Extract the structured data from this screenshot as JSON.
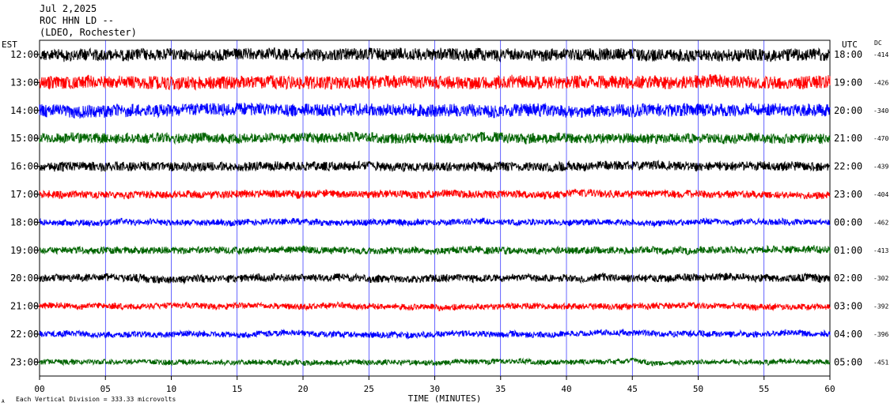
{
  "header": {
    "date": "Jul 2,2025",
    "station": "ROC HHN LD --",
    "network": "(LDEO, Rochester)"
  },
  "labels": {
    "left_tz": "EST",
    "right_tz": "UTC",
    "dc_header": "DC",
    "xlabel": "TIME (MINUTES)",
    "scale_note": "Each Vertical Division =  333.33 microvolts",
    "corner_mark": "A"
  },
  "colors": {
    "black": "#000000",
    "red": "#ff0000",
    "blue": "#0000ff",
    "green": "#006400",
    "grid": "#0000ff"
  },
  "chart_data": {
    "type": "line",
    "title": "",
    "xlabel": "TIME (MINUTES)",
    "ylabel": "",
    "xlim": [
      0,
      60
    ],
    "x_ticks": [
      "00",
      "05",
      "10",
      "15",
      "20",
      "25",
      "30",
      "35",
      "40",
      "45",
      "50",
      "55",
      "60"
    ],
    "grid_vertical_every_minutes": 5,
    "color_cycle": [
      "#000000",
      "#ff0000",
      "#0000ff",
      "#006400"
    ],
    "rows": [
      {
        "local": "12:00",
        "utc": "18:00",
        "dc": "-414",
        "amplitude": 2.4
      },
      {
        "local": "13:00",
        "utc": "19:00",
        "dc": "-426",
        "amplitude": 2.6
      },
      {
        "local": "14:00",
        "utc": "20:00",
        "dc": "-340",
        "amplitude": 2.5
      },
      {
        "local": "15:00",
        "utc": "21:00",
        "dc": "-470",
        "amplitude": 2.0
      },
      {
        "local": "16:00",
        "utc": "22:00",
        "dc": "-439",
        "amplitude": 1.8
      },
      {
        "local": "17:00",
        "utc": "23:00",
        "dc": "-404",
        "amplitude": 1.5
      },
      {
        "local": "18:00",
        "utc": "00:00",
        "dc": "-462",
        "amplitude": 1.2
      },
      {
        "local": "19:00",
        "utc": "01:00",
        "dc": "-413",
        "amplitude": 1.4
      },
      {
        "local": "20:00",
        "utc": "02:00",
        "dc": "-302",
        "amplitude": 1.5
      },
      {
        "local": "21:00",
        "utc": "03:00",
        "dc": "-392",
        "amplitude": 1.2
      },
      {
        "local": "22:00",
        "utc": "04:00",
        "dc": "-396",
        "amplitude": 1.2
      },
      {
        "local": "23:00",
        "utc": "05:00",
        "dc": "-451",
        "amplitude": 1.0
      }
    ]
  }
}
